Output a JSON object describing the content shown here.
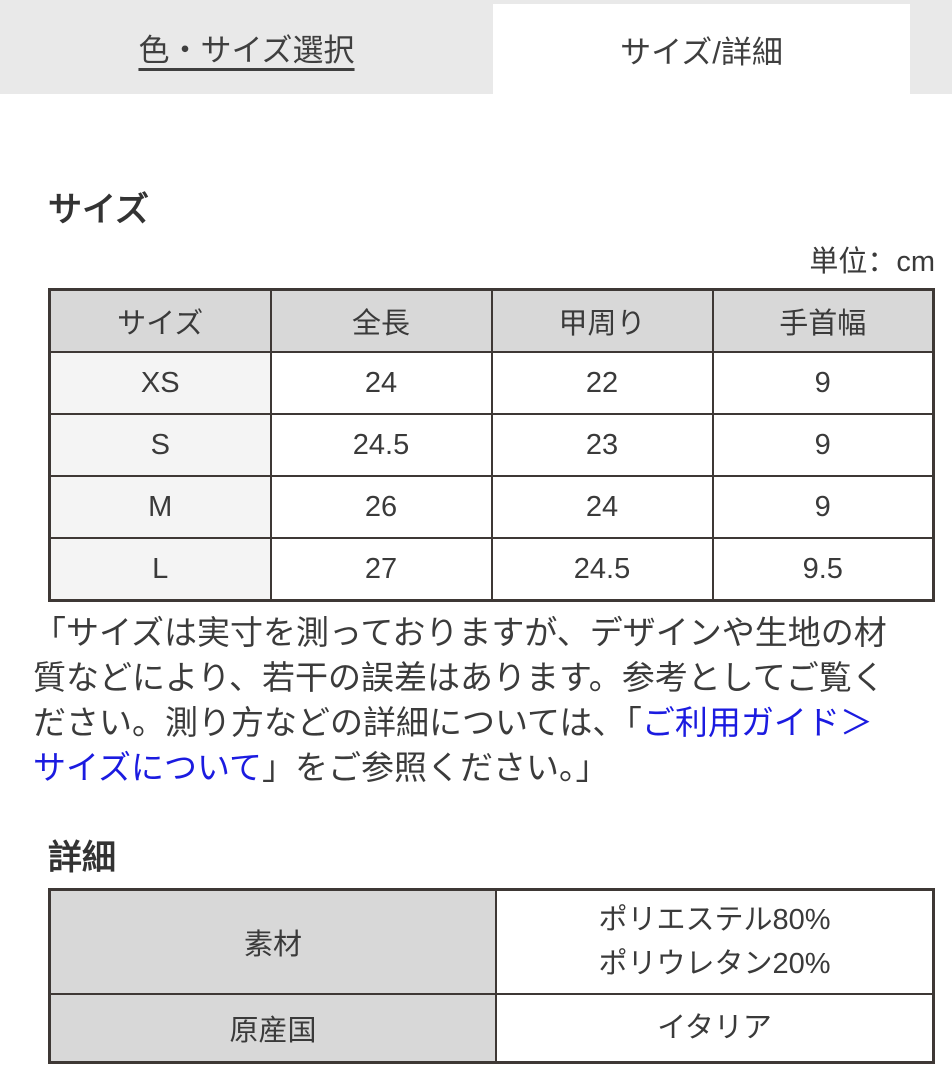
{
  "tabs": {
    "color_size": "色・サイズ選択",
    "size_detail": "サイズ/詳細"
  },
  "size_section": {
    "heading": "サイズ",
    "unit_label": "単位：cm",
    "table": {
      "headers": [
        "サイズ",
        "全長",
        "甲周り",
        "手首幅"
      ],
      "rows": [
        [
          "XS",
          "24",
          "22",
          "9"
        ],
        [
          "S",
          "24.5",
          "23",
          "9"
        ],
        [
          "M",
          "26",
          "24",
          "9"
        ],
        [
          "L",
          "27",
          "24.5",
          "9.5"
        ]
      ]
    },
    "note": {
      "line1": "「サイズは実寸を測っておりますが、デザインや生地の材",
      "line2": "質などにより、若干の誤差はあります。参考としてご覧く",
      "line3_text": "ださい。測り方などの詳細については、「",
      "line3_link": "ご利用ガイド＞",
      "line4_link": "サイズについて",
      "line4_text": "」をご参照ください。」"
    }
  },
  "detail_section": {
    "heading": "詳細",
    "material_label": "素材",
    "material_value_line1": "ポリエステル80%",
    "material_value_line2": "ポリウレタン20%",
    "origin_label": "原産国",
    "origin_value": "イタリア"
  },
  "colors": {
    "tab_bar_bg": "#e9e9e9",
    "table_header_bg": "#d8d8d8",
    "row_header_bg": "#f4f4f4",
    "table_border": "#3e3835",
    "link_blue": "#1b1be0",
    "text": "#3a3a3a"
  }
}
